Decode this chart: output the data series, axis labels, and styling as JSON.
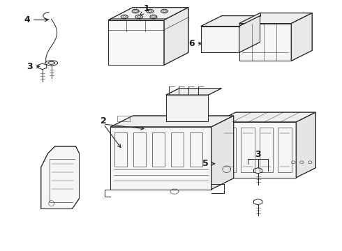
{
  "background_color": "#ffffff",
  "line_color": "#2d2d2d",
  "label_color": "#1a1a1a",
  "fig_width": 4.9,
  "fig_height": 3.6,
  "dpi": 100
}
